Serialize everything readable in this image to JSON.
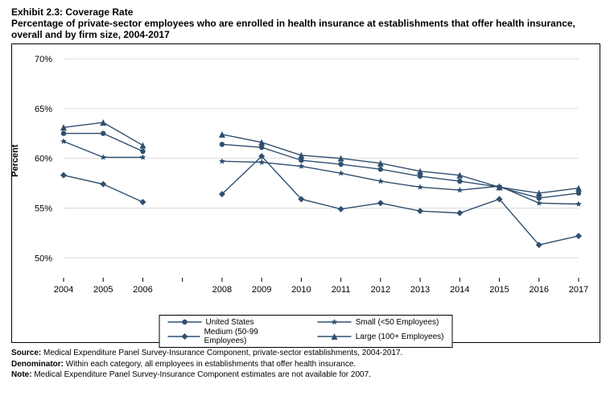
{
  "title_line1": "Exhibit 2.3: Coverage Rate",
  "title_line2": "Percentage of private-sector employees who are enrolled in health insurance at establishments that offer health insurance, overall and by firm size, 2004-2017",
  "y_axis_label": "Percent",
  "chart": {
    "type": "line",
    "years": [
      2004,
      2005,
      2006,
      2007,
      2008,
      2009,
      2010,
      2011,
      2012,
      2013,
      2014,
      2015,
      2016,
      2017
    ],
    "year_labels": [
      "2004",
      "2005",
      "2006",
      "",
      "2008",
      "2009",
      "2010",
      "2011",
      "2012",
      "2013",
      "2014",
      "2015",
      "2016",
      "2017"
    ],
    "ylim": [
      48,
      70
    ],
    "ytick_start": 50,
    "ytick_step": 5,
    "y_suffix": "%",
    "grid_color": "#dcdcdc",
    "line_color": "#2f4f6f",
    "background_color": "#ffffff",
    "series": [
      {
        "name": "United States",
        "marker": "circle",
        "values": [
          62.5,
          62.5,
          60.7,
          null,
          61.4,
          61.1,
          59.8,
          59.4,
          58.9,
          58.2,
          57.7,
          57.1,
          56.0,
          56.5
        ]
      },
      {
        "name": "Small (<50 Employees)",
        "marker": "star",
        "values": [
          61.7,
          60.1,
          60.1,
          null,
          59.7,
          59.6,
          59.2,
          58.5,
          57.7,
          57.1,
          56.8,
          57.2,
          55.5,
          55.4
        ]
      },
      {
        "name": "Medium (50-99 Employees)",
        "marker": "diamond",
        "values": [
          58.3,
          57.4,
          55.6,
          null,
          56.4,
          60.2,
          55.9,
          54.9,
          55.5,
          54.7,
          54.5,
          55.9,
          51.3,
          52.2
        ]
      },
      {
        "name": "Large (100+ Employees)",
        "marker": "triangle",
        "values": [
          63.1,
          63.6,
          61.3,
          null,
          62.4,
          61.6,
          60.3,
          60.0,
          59.5,
          58.7,
          58.3,
          57.1,
          56.5,
          57.0
        ]
      }
    ]
  },
  "legend": {
    "items": [
      "United States",
      "Small (<50 Employees)",
      "Medium (50-99 Employees)",
      "Large (100+ Employees)"
    ]
  },
  "footnotes": {
    "source_label": "Source:",
    "source_text": " Medical Expenditure Panel Survey-Insurance Component, private-sector establishments, 2004-2017.",
    "denom_label": "Denominator:",
    "denom_text": " Within each category, all employees in establishments that offer health insurance.",
    "note_label": "Note:",
    "note_text": " Medical Expenditure Panel Survey-Insurance Component estimates are not available for 2007."
  }
}
